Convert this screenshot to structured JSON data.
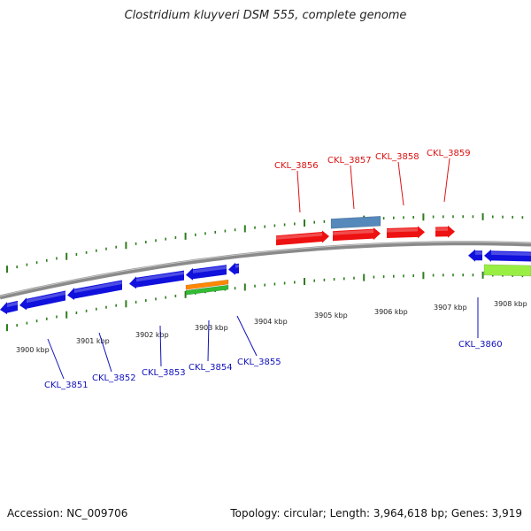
{
  "title": "Clostridium kluyveri DSM 555, complete genome",
  "footer": {
    "accession": "Accession: NC_009706",
    "stats": "Topology: circular; Length: 3,964,618 bp; Genes: 3,919"
  },
  "colors": {
    "backbone": "#8a8a8a",
    "ticks": "#2e7d1e",
    "forward_gene": "#ee1111",
    "reverse_gene": "#1111dd",
    "forward_label": "#dd1111",
    "reverse_label": "#1111bb",
    "feature_steelblue": "#5588bb",
    "feature_orange": "#ff8800",
    "feature_green": "#33bb33",
    "feature_lime": "#99ee44"
  },
  "scale_labels": [
    "3900 kbp",
    "3901 kbp",
    "3902 kbp",
    "3903 kbp",
    "3904 kbp",
    "3905 kbp",
    "3906 kbp",
    "3907 kbp",
    "3908 kbp"
  ],
  "genes_forward": [
    "CKL_3856",
    "CKL_3857",
    "CKL_3858",
    "CKL_3859"
  ],
  "genes_reverse": [
    "CKL_3851",
    "CKL_3852",
    "CKL_3853",
    "CKL_3854",
    "CKL_3855",
    "CKL_3860"
  ]
}
